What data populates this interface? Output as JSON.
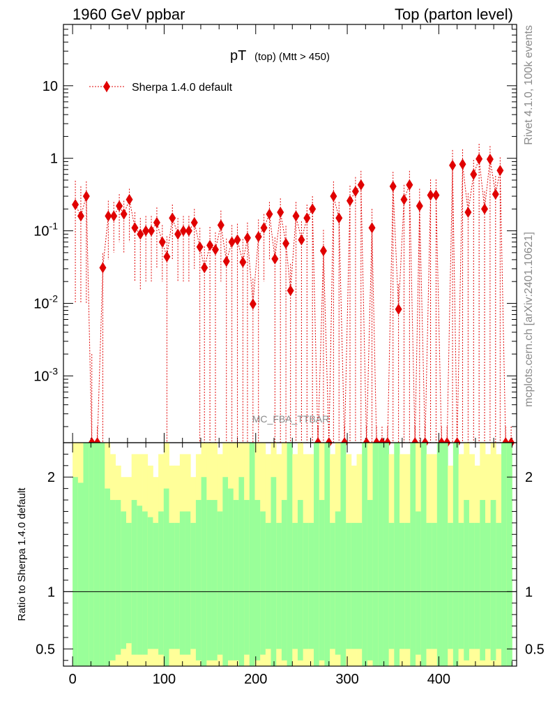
{
  "header": {
    "left_label": "1960 GeV ppbar",
    "right_label": "Top (parton level)"
  },
  "side_labels": {
    "rivet": "Rivet 4.1.0,  100k events",
    "mcplots": "mcplots.cern.ch [arXiv:2401.10621]"
  },
  "analysis_label": "MC_FBA_TTBAR",
  "colors": {
    "mc": "#e00000",
    "band_inner": "#99ff99",
    "band_outer": "#ffff99",
    "ratio_line": "#000000"
  },
  "chart_data": [
    {
      "type": "scatter",
      "panel": "main",
      "title_main": "pT",
      "title_sub": "(top) (Mtt > 450)",
      "xlim": [
        -10,
        485
      ],
      "ylim": [
        0.00012,
        70
      ],
      "yscale": "log",
      "yticks": [
        0.001,
        0.01,
        0.1,
        1,
        10
      ],
      "ytick_labels": [
        "10^-3",
        "10^-2",
        "10^-1",
        "1",
        "10"
      ],
      "legend": {
        "label": "Sherpa 1.4.0 default",
        "placement": "top-left"
      },
      "series": [
        {
          "name": "Sherpa 1.4.0 default",
          "bin_width": 5.8,
          "x": [
            3,
            9,
            15,
            21,
            27,
            33,
            39,
            45,
            51,
            56,
            62,
            68,
            74,
            80,
            86,
            92,
            98,
            103,
            109,
            115,
            121,
            127,
            133,
            139,
            144,
            150,
            156,
            162,
            168,
            174,
            180,
            186,
            191,
            197,
            203,
            209,
            215,
            221,
            227,
            233,
            238,
            244,
            250,
            256,
            262,
            268,
            274,
            280,
            285,
            291,
            297,
            303,
            309,
            315,
            321,
            327,
            332,
            338,
            344,
            350,
            356,
            362,
            368,
            374,
            379,
            385,
            391,
            397,
            403,
            409,
            415,
            420,
            426,
            432,
            438,
            444,
            450,
            456,
            462,
            467,
            473,
            479
          ],
          "y": [
            0.23,
            0.16,
            0.3,
            0.0001,
            0.0001,
            0.031,
            0.16,
            0.16,
            0.22,
            0.17,
            0.27,
            0.11,
            0.09,
            0.1,
            0.1,
            0.13,
            0.07,
            0.044,
            0.15,
            0.09,
            0.1,
            0.1,
            0.13,
            0.06,
            0.031,
            0.063,
            0.055,
            0.12,
            0.038,
            0.07,
            0.075,
            0.037,
            0.08,
            0.0098,
            0.083,
            0.11,
            0.17,
            0.041,
            0.18,
            0.067,
            0.015,
            0.16,
            0.075,
            0.15,
            0.2,
            0.0001,
            0.053,
            0.0001,
            0.3,
            0.15,
            0.0001,
            0.26,
            0.35,
            0.43,
            0.0001,
            0.11,
            0.0001,
            0.0001,
            0.0001,
            0.41,
            0.0083,
            0.27,
            0.43,
            0.0001,
            0.22,
            0.0001,
            0.31,
            0.31,
            0.0001,
            0.0001,
            0.8,
            0.0001,
            0.83,
            0.18,
            0.6,
            0.98,
            0.2,
            0.97,
            0.32,
            0.68,
            0.0001,
            0.0001
          ],
          "y_err_up": [
            0.26,
            0.25,
            0.18,
            0.0019,
            0.0001,
            0.018,
            0.1,
            0.09,
            0.1,
            0.09,
            0.11,
            0.07,
            0.06,
            0.06,
            0.06,
            0.08,
            0.05,
            0.04,
            0.08,
            0.06,
            0.06,
            0.06,
            0.07,
            0.05,
            0.03,
            0.05,
            0.04,
            0.07,
            0.04,
            0.05,
            0.05,
            0.04,
            0.05,
            0.012,
            0.06,
            0.06,
            0.08,
            0.04,
            0.1,
            0.05,
            0.02,
            0.09,
            0.06,
            0.08,
            0.1,
            0.0001,
            0.05,
            0.0001,
            0.18,
            0.1,
            0.0001,
            0.16,
            0.2,
            0.24,
            0.0001,
            0.09,
            0.0001,
            0.0001,
            0.0001,
            0.24,
            0.01,
            0.16,
            0.24,
            0.0001,
            0.16,
            0.0001,
            0.2,
            0.2,
            0.0001,
            0.0001,
            0.5,
            0.0001,
            0.5,
            0.15,
            0.35,
            0.6,
            0.15,
            0.5,
            0.25,
            0.35,
            0.0001,
            0.0001
          ],
          "y_err_down": [
            0.22,
            0.15,
            0.29,
            0.0,
            0.0,
            0.031,
            0.12,
            0.11,
            0.15,
            0.12,
            0.2,
            0.09,
            0.075,
            0.08,
            0.08,
            0.1,
            0.05,
            0.044,
            0.11,
            0.07,
            0.08,
            0.08,
            0.1,
            0.06,
            0.031,
            0.063,
            0.055,
            0.1,
            0.038,
            0.07,
            0.075,
            0.037,
            0.08,
            0.0098,
            0.083,
            0.09,
            0.13,
            0.041,
            0.18,
            0.067,
            0.015,
            0.16,
            0.075,
            0.15,
            0.2,
            0.0,
            0.053,
            0.0,
            0.3,
            0.15,
            0.0,
            0.26,
            0.35,
            0.43,
            0.0,
            0.11,
            0.0,
            0.0,
            0.0,
            0.41,
            0.0083,
            0.27,
            0.43,
            0.0,
            0.22,
            0.0,
            0.31,
            0.31,
            0.0,
            0.0,
            0.8,
            0.0,
            0.83,
            0.18,
            0.6,
            0.98,
            0.2,
            0.97,
            0.32,
            0.68,
            0.0,
            0.0
          ]
        }
      ]
    },
    {
      "type": "area",
      "panel": "ratio",
      "ylabel": "Ratio to Sherpa 1.4.0 default",
      "xlim": [
        -10,
        485
      ],
      "ylim": [
        0.35,
        2.3
      ],
      "xticks": [
        0,
        100,
        200,
        300,
        400
      ],
      "yticks": [
        0.5,
        1,
        2
      ],
      "reference_line": 1,
      "bin_edges": [
        0,
        480
      ],
      "band_inner_upper": [
        2.0,
        1.95,
        2.3,
        2.3,
        2.3,
        2.3,
        1.9,
        1.8,
        1.8,
        1.7,
        1.6,
        1.8,
        1.75,
        1.7,
        1.65,
        1.6,
        1.7,
        1.9,
        1.6,
        1.6,
        1.7,
        1.7,
        1.6,
        1.8,
        2.0,
        1.8,
        1.8,
        1.7,
        2.0,
        1.9,
        1.8,
        2.0,
        1.8,
        2.3,
        1.8,
        1.7,
        1.6,
        2.0,
        1.6,
        1.8,
        2.3,
        1.6,
        1.8,
        1.6,
        1.6,
        2.3,
        1.8,
        2.3,
        1.6,
        1.7,
        2.3,
        1.6,
        1.6,
        1.6,
        2.3,
        1.8,
        2.3,
        2.3,
        2.3,
        1.6,
        2.3,
        1.6,
        1.6,
        2.3,
        1.7,
        2.3,
        1.6,
        1.6,
        2.3,
        2.3,
        1.6,
        2.3,
        1.6,
        1.8,
        1.6,
        1.6,
        1.8,
        1.6,
        1.8,
        1.6,
        2.3,
        2.3
      ],
      "band_outer_upper": [
        2.3,
        2.3,
        2.3,
        2.3,
        2.3,
        2.3,
        2.3,
        2.2,
        2.1,
        2.0,
        2.0,
        2.2,
        2.2,
        2.2,
        2.1,
        2.0,
        2.2,
        2.3,
        2.1,
        2.1,
        2.2,
        2.2,
        2.0,
        2.2,
        2.3,
        2.3,
        2.3,
        2.2,
        2.3,
        2.3,
        2.3,
        2.3,
        2.3,
        2.3,
        2.3,
        2.3,
        2.2,
        2.3,
        2.2,
        2.3,
        2.3,
        2.2,
        2.3,
        2.2,
        2.2,
        2.3,
        2.3,
        2.3,
        2.2,
        2.3,
        2.3,
        2.2,
        2.1,
        2.2,
        2.3,
        2.3,
        2.3,
        2.3,
        2.3,
        2.2,
        2.3,
        2.2,
        2.2,
        2.3,
        2.3,
        2.3,
        2.2,
        2.2,
        2.3,
        2.3,
        2.1,
        2.3,
        2.2,
        2.3,
        2.2,
        2.1,
        2.3,
        2.2,
        2.3,
        2.2,
        2.3,
        2.3
      ],
      "band_inner_lower": [
        0.35,
        0.35,
        0.35,
        0.35,
        0.35,
        0.35,
        0.35,
        0.4,
        0.45,
        0.5,
        0.55,
        0.45,
        0.45,
        0.45,
        0.5,
        0.5,
        0.45,
        0.35,
        0.5,
        0.5,
        0.45,
        0.45,
        0.5,
        0.4,
        0.35,
        0.4,
        0.4,
        0.45,
        0.35,
        0.4,
        0.4,
        0.35,
        0.45,
        0.35,
        0.4,
        0.45,
        0.5,
        0.35,
        0.5,
        0.4,
        0.35,
        0.5,
        0.4,
        0.5,
        0.5,
        0.35,
        0.4,
        0.35,
        0.5,
        0.45,
        0.35,
        0.5,
        0.5,
        0.5,
        0.35,
        0.4,
        0.35,
        0.35,
        0.35,
        0.5,
        0.35,
        0.5,
        0.5,
        0.35,
        0.45,
        0.35,
        0.5,
        0.5,
        0.35,
        0.35,
        0.5,
        0.35,
        0.5,
        0.4,
        0.5,
        0.5,
        0.4,
        0.5,
        0.4,
        0.5,
        0.35,
        0.35
      ],
      "band_outer_lower": [
        0.35,
        0.35,
        0.35,
        0.35,
        0.35,
        0.35,
        0.35,
        0.35,
        0.35,
        0.35,
        0.35,
        0.35,
        0.35,
        0.35,
        0.35,
        0.35,
        0.35,
        0.35,
        0.35,
        0.35,
        0.35,
        0.35,
        0.35,
        0.35,
        0.35,
        0.35,
        0.35,
        0.35,
        0.35,
        0.35,
        0.35,
        0.35,
        0.35,
        0.35,
        0.35,
        0.35,
        0.35,
        0.35,
        0.35,
        0.35,
        0.35,
        0.35,
        0.35,
        0.35,
        0.35,
        0.35,
        0.35,
        0.35,
        0.35,
        0.35,
        0.35,
        0.35,
        0.35,
        0.35,
        0.35,
        0.35,
        0.35,
        0.35,
        0.35,
        0.35,
        0.35,
        0.35,
        0.35,
        0.35,
        0.35,
        0.35,
        0.35,
        0.35,
        0.35,
        0.35,
        0.35,
        0.35,
        0.35,
        0.35,
        0.35,
        0.35,
        0.35,
        0.35,
        0.35,
        0.35,
        0.35,
        0.35
      ]
    }
  ]
}
